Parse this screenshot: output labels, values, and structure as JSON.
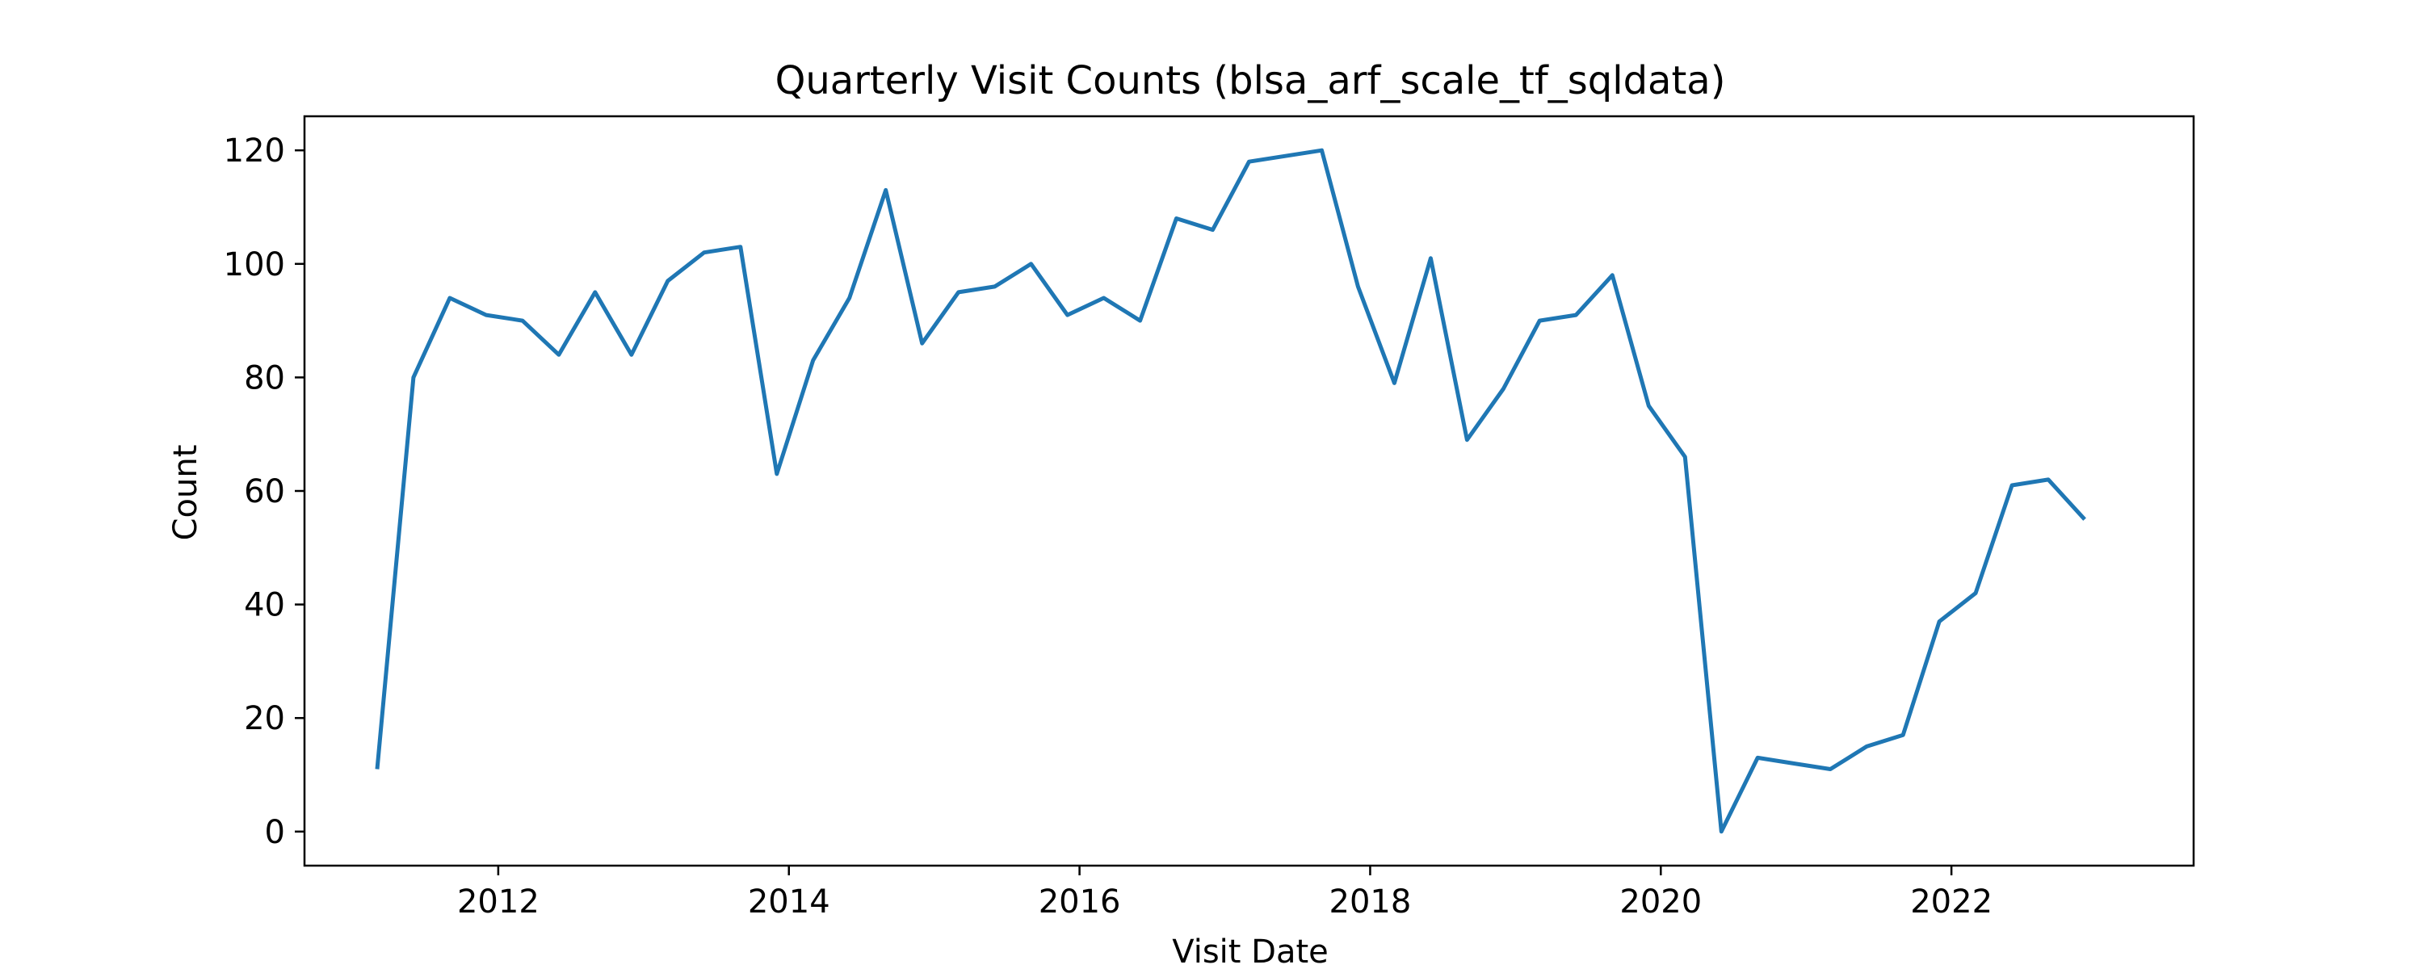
{
  "chart_data": {
    "type": "line",
    "title": "Quarterly Visit Counts (blsa_arf_scale_tf_sqldata)",
    "xlabel": "Visit Date",
    "ylabel": "Count",
    "x_ticks": [
      "2012",
      "2014",
      "2016",
      "2018",
      "2020",
      "2022"
    ],
    "y_ticks": [
      0,
      20,
      40,
      60,
      80,
      100,
      120
    ],
    "xlim": [
      "2010-09",
      "2023-09"
    ],
    "ylim": [
      -6,
      126
    ],
    "grid": false,
    "legend": "none",
    "color": "#1f77b4",
    "series": [
      {
        "x": [
          "2011-03",
          "2011-06",
          "2011-09",
          "2011-12",
          "2012-03",
          "2012-06",
          "2012-09",
          "2012-12",
          "2013-03",
          "2013-06",
          "2013-09",
          "2013-12",
          "2014-03",
          "2014-06",
          "2014-09",
          "2014-12",
          "2015-03",
          "2015-06",
          "2015-09",
          "2015-12",
          "2016-03",
          "2016-06",
          "2016-09",
          "2016-12",
          "2017-03",
          "2017-06",
          "2017-09",
          "2017-12",
          "2018-03",
          "2018-06",
          "2018-09",
          "2018-12",
          "2019-03",
          "2019-06",
          "2019-09",
          "2019-12",
          "2020-03",
          "2020-06",
          "2020-09",
          "2020-12",
          "2021-03",
          "2021-06",
          "2021-09",
          "2021-12",
          "2022-03",
          "2022-06",
          "2022-09",
          "2022-12"
        ],
        "values": [
          11,
          80,
          94,
          91,
          90,
          84,
          95,
          84,
          97,
          102,
          103,
          63,
          83,
          94,
          113,
          86,
          95,
          96,
          100,
          91,
          94,
          90,
          108,
          106,
          118,
          119,
          120,
          96,
          79,
          101,
          69,
          78,
          90,
          91,
          98,
          75,
          66,
          0,
          13,
          12,
          11,
          15,
          17,
          37,
          42,
          61,
          62,
          55
        ]
      }
    ]
  }
}
